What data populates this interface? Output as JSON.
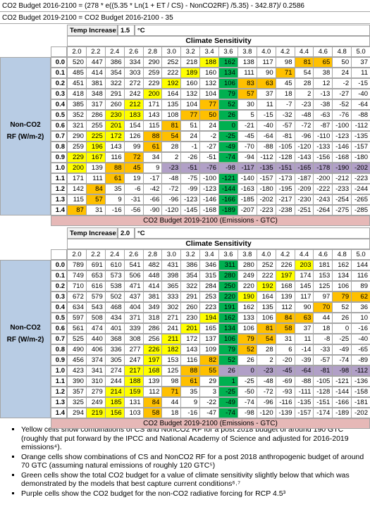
{
  "formula_lines": [
    "CO2 Budget 2016-2100 = (278 * e((5.35 * Ln(1 + ET / CS)  - NonCO2RF) /5.35) - 342.87)/ 0.2586",
    "CO2 Budget 2019-2100 = CO2 Budget 2016-2100 - 35"
  ],
  "fill_colors": {
    "w": "#ffffff",
    "Y": "#ffff00",
    "O": "#ffc000",
    "G": "#00b050",
    "P": "#b1a0c7"
  },
  "tables": [
    {
      "temp_label": "Temp Increase:",
      "temp_value": "1.5",
      "temp_unit": "°C",
      "sensitivity_label": "Climate Sensitivity",
      "row_axis_label": "Non-CO2 RF (W/m-2)",
      "columns": [
        "2.0",
        "2.2",
        "2.4",
        "2.6",
        "2.8",
        "3.0",
        "3.2",
        "3.4",
        "3.6",
        "3.8",
        "4.0",
        "4.2",
        "4.4",
        "4.6",
        "4.8",
        "5.0"
      ],
      "rows": [
        {
          "key": "0.0",
          "values": [
            520,
            447,
            386,
            334,
            290,
            252,
            218,
            188,
            162,
            138,
            117,
            98,
            81,
            65,
            50,
            37
          ],
          "fills": "wwwwwwwYGwwwOOww"
        },
        {
          "key": "0.1",
          "values": [
            485,
            414,
            354,
            303,
            259,
            222,
            189,
            160,
            134,
            111,
            90,
            71,
            54,
            38,
            24,
            11
          ],
          "fills": "wwwwwwYwGwwOwwww"
        },
        {
          "key": "0.2",
          "values": [
            451,
            381,
            322,
            272,
            229,
            192,
            160,
            132,
            106,
            83,
            63,
            45,
            28,
            12,
            -2,
            -15
          ],
          "fills": "wwwwwYwwGOOwwwww"
        },
        {
          "key": "0.3",
          "values": [
            418,
            348,
            291,
            242,
            200,
            164,
            132,
            104,
            79,
            57,
            37,
            18,
            2,
            -13,
            -27,
            -40
          ],
          "fills": "wwwwYwwwGOwwwwww"
        },
        {
          "key": "0.4",
          "values": [
            385,
            317,
            260,
            212,
            171,
            135,
            104,
            77,
            52,
            30,
            11,
            -7,
            -23,
            -38,
            -52,
            -64
          ],
          "fills": "wwwYwwwOGwwwwwww"
        },
        {
          "key": "0.5",
          "values": [
            352,
            286,
            230,
            183,
            143,
            108,
            77,
            50,
            26,
            5,
            -15,
            -32,
            -48,
            -63,
            -76,
            -88
          ],
          "fills": "wwYYwwOOGwwwwwww"
        },
        {
          "key": "0.6",
          "values": [
            321,
            255,
            201,
            154,
            115,
            81,
            51,
            24,
            0,
            -21,
            -40,
            -57,
            -72,
            -87,
            -100,
            -112
          ],
          "fills": "wwYwwOwwGwwwwwww"
        },
        {
          "key": "0.7",
          "values": [
            290,
            225,
            172,
            126,
            88,
            54,
            24,
            -2,
            -25,
            -45,
            -64,
            -81,
            -96,
            -110,
            -123,
            -135
          ],
          "fills": "wYYwOOwwGwwwwwww"
        },
        {
          "key": "0.8",
          "values": [
            259,
            196,
            143,
            99,
            61,
            28,
            -1,
            -27,
            -49,
            -70,
            -88,
            -105,
            -120,
            -133,
            -146,
            -157
          ],
          "fills": "wYwwOwwwGwwwwwww"
        },
        {
          "key": "0.9",
          "values": [
            229,
            167,
            116,
            72,
            34,
            2,
            -26,
            -51,
            -74,
            -94,
            -112,
            -128,
            -143,
            -156,
            -168,
            -180
          ],
          "fills": "YYwOwwwwGwwwwwww"
        },
        {
          "key": "1.0",
          "values": [
            200,
            139,
            88,
            45,
            9,
            -23,
            -51,
            -76,
            -98,
            -117,
            -135,
            -151,
            -165,
            -178,
            -190,
            -202
          ],
          "fills": "YwOOwPPPPPPPPPPP"
        },
        {
          "key": "1.1",
          "values": [
            171,
            111,
            61,
            19,
            -17,
            -48,
            -75,
            -100,
            -121,
            -140,
            -157,
            -173,
            -187,
            -200,
            -212,
            -223
          ],
          "fills": "wwOwwwwwGwwwwwww"
        },
        {
          "key": "1.2",
          "values": [
            142,
            84,
            35,
            -6,
            -42,
            -72,
            -99,
            -123,
            -144,
            -163,
            -180,
            -195,
            -209,
            -222,
            -233,
            -244
          ],
          "fills": "wOwwwwwwGwwwwwww"
        },
        {
          "key": "1.3",
          "values": [
            115,
            57,
            9,
            -31,
            -66,
            -96,
            -123,
            -146,
            -166,
            -185,
            -202,
            -217,
            -230,
            -243,
            -254,
            -265
          ],
          "fills": "wOwwwwwwGwwwwwww"
        },
        {
          "key": "1.4",
          "values": [
            87,
            31,
            -16,
            -56,
            -90,
            -120,
            -145,
            -168,
            -189,
            -207,
            -223,
            -238,
            -251,
            -264,
            -275,
            -285
          ],
          "fills": "OwwwwwwwGwwwwwww"
        }
      ],
      "footer": "CO2 Budget 2019-2100 (Emissions - GTC)"
    },
    {
      "temp_label": "Temp Increase:",
      "temp_value": "2.0",
      "temp_unit": "°C",
      "sensitivity_label": "Climate Sensitivity",
      "row_axis_label": "Non-CO2 RF (W/m-2)",
      "columns": [
        "2.0",
        "2.2",
        "2.4",
        "2.6",
        "2.8",
        "3.0",
        "3.2",
        "3.4",
        "3.6",
        "3.8",
        "4.0",
        "4.2",
        "4.4",
        "4.6",
        "4.8",
        "5.0"
      ],
      "rows": [
        {
          "key": "0.0",
          "values": [
            789,
            691,
            610,
            541,
            482,
            431,
            386,
            346,
            311,
            280,
            252,
            226,
            203,
            181,
            162,
            144
          ],
          "fills": "wwwwwwwwGwwwYwww"
        },
        {
          "key": "0.1",
          "values": [
            749,
            653,
            573,
            506,
            448,
            398,
            354,
            315,
            280,
            249,
            222,
            197,
            174,
            153,
            134,
            116
          ],
          "fills": "wwwwwwwwGwwYwwww"
        },
        {
          "key": "0.2",
          "values": [
            710,
            616,
            538,
            471,
            414,
            365,
            322,
            284,
            250,
            220,
            192,
            168,
            145,
            125,
            106,
            89
          ],
          "fills": "wwwwwwwwGwYwwwww"
        },
        {
          "key": "0.3",
          "values": [
            672,
            579,
            502,
            437,
            381,
            333,
            291,
            253,
            220,
            190,
            164,
            139,
            117,
            97,
            79,
            62
          ],
          "fills": "wwwwwwwwGYwwwwOO"
        },
        {
          "key": "0.4",
          "values": [
            634,
            543,
            468,
            404,
            349,
            302,
            260,
            223,
            191,
            162,
            135,
            112,
            90,
            70,
            52,
            36
          ],
          "fills": "wwwwwwwwGwwwwOww"
        },
        {
          "key": "0.5",
          "values": [
            597,
            508,
            434,
            371,
            318,
            271,
            230,
            194,
            162,
            133,
            106,
            84,
            63,
            44,
            26,
            10
          ],
          "fills": "wwwwwwwYGwwOOwww"
        },
        {
          "key": "0.6",
          "values": [
            561,
            474,
            401,
            339,
            286,
            241,
            201,
            165,
            134,
            106,
            81,
            58,
            37,
            18,
            0,
            -16
          ],
          "fills": "wwwwwwYwGwOOwwww"
        },
        {
          "key": "0.7",
          "values": [
            525,
            440,
            368,
            308,
            256,
            211,
            172,
            137,
            106,
            79,
            54,
            31,
            11,
            -8,
            -25,
            -40
          ],
          "fills": "wwwwwYwwGOOwwwww"
        },
        {
          "key": "0.8",
          "values": [
            490,
            406,
            336,
            277,
            226,
            182,
            143,
            109,
            79,
            52,
            28,
            6,
            -14,
            -33,
            -49,
            -65
          ],
          "fills": "wwwwYYwwGOwwwwww"
        },
        {
          "key": "0.9",
          "values": [
            456,
            374,
            305,
            247,
            197,
            153,
            116,
            82,
            52,
            26,
            2,
            -20,
            -39,
            -57,
            -74,
            -89
          ],
          "fills": "wwwwYwwOGwwwwwww"
        },
        {
          "key": "1.0",
          "values": [
            423,
            341,
            274,
            217,
            168,
            125,
            88,
            55,
            26,
            0,
            -23,
            -45,
            -64,
            -81,
            -98,
            -112
          ],
          "fills": "wwwYYwOOPPPPPPPP"
        },
        {
          "key": "1.1",
          "values": [
            390,
            310,
            244,
            188,
            139,
            98,
            61,
            29,
            1,
            -25,
            -48,
            -69,
            -88,
            -105,
            -121,
            -136
          ],
          "fills": "wwwYwwOwGwwwwwww"
        },
        {
          "key": "1.2",
          "values": [
            357,
            279,
            214,
            159,
            112,
            71,
            35,
            3,
            -25,
            -50,
            -72,
            -93,
            -111,
            -128,
            -144,
            -158
          ],
          "fills": "wwYYwOwwGwwwwwww"
        },
        {
          "key": "1.3",
          "values": [
            325,
            249,
            185,
            131,
            84,
            44,
            9,
            -22,
            -49,
            -74,
            -96,
            -116,
            -135,
            -151,
            -166,
            -181
          ],
          "fills": "wwYwOwwwGwwwwwww"
        },
        {
          "key": "1.4",
          "values": [
            294,
            219,
            156,
            103,
            58,
            18,
            -16,
            -47,
            -74,
            -98,
            -120,
            -139,
            -157,
            -174,
            -189,
            -202
          ],
          "fills": "wYYwOwwwGwwwwwww"
        }
      ],
      "footer": "CO2 Budget 2019-2100 (Emissions - GTC)"
    }
  ],
  "notes": [
    "Yellow cells show combinations of CS and NonCO2 RF for a post 2018 budget of around 190 GTC (roughly that put forward  by the IPCC and National Academy of Science and adjusted for 2016-2019 emissions⁴).",
    "Orange cells show combinations of CS and NonCO2 RF for a post 2018 anthropogenic budget of around 70 GTC  (assuming natural emissions of roughly 120 GTC⁵)",
    "Green cells show the total CO2 budget for a value of climate sensitivity slightly below  that which was demonstrated by the models that best capture current conditions⁶˒⁷",
    "Purple cells show the CO2 budget for the non-CO2 radiative forcing for RCP 4.5³"
  ]
}
